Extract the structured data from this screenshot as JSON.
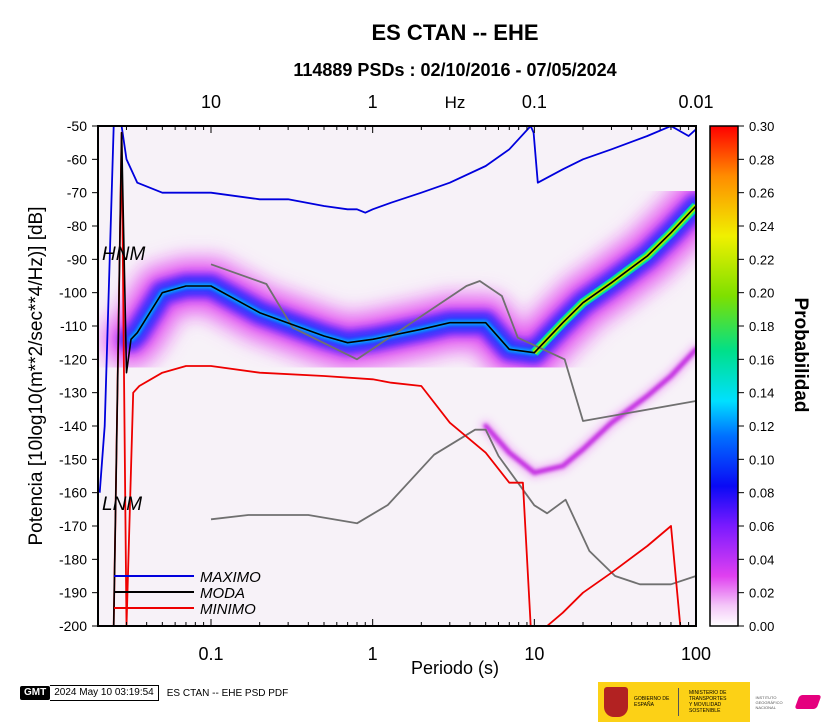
{
  "chart_data": {
    "type": "heatmap",
    "title": "ES CTAN -- EHE",
    "subtitle": "114889 PSDs : 02/10/2016 - 07/05/2024",
    "xlabel": "Periodo (s)",
    "ylabel": "Potencia [10log10(m**2/sec**4/Hz)] [dB]",
    "x_scale": "log",
    "xlim": [
      0.02,
      100
    ],
    "ylim": [
      -200,
      -50
    ],
    "x_ticks": [
      "0.1",
      "1",
      "10",
      "100"
    ],
    "top_axis_label": "Hz",
    "top_ticks": [
      "10",
      "1",
      "0.1",
      "0.01"
    ],
    "y_ticks": [
      "-50",
      "-60",
      "-70",
      "-80",
      "-90",
      "-100",
      "-110",
      "-120",
      "-130",
      "-140",
      "-150",
      "-160",
      "-170",
      "-180",
      "-190",
      "-200"
    ],
    "colorbar": {
      "label": "Probabilidad",
      "range": [
        0,
        0.3
      ],
      "ticks": [
        "0.30",
        "0.28",
        "0.26",
        "0.24",
        "0.22",
        "0.20",
        "0.18",
        "0.16",
        "0.14",
        "0.12",
        "0.10",
        "0.08",
        "0.06",
        "0.04",
        "0.02",
        "0.00"
      ]
    },
    "model_labels": [
      "HNM",
      "LNM"
    ],
    "legend": {
      "placement": "bottom-left",
      "items": [
        {
          "name": "MAXIMO",
          "color": "#0000dd"
        },
        {
          "name": "MODA",
          "color": "#000000"
        },
        {
          "name": "MINIMO",
          "color": "#ee0000"
        }
      ]
    },
    "series": [
      {
        "name": "MAXIMO",
        "color": "#0000dd",
        "x": [
          0.0205,
          0.022,
          0.025,
          0.028,
          0.03,
          0.035,
          0.05,
          0.07,
          0.1,
          0.2,
          0.3,
          0.5,
          0.7,
          0.8,
          0.9,
          1.0,
          1.3,
          2.0,
          3.0,
          5.0,
          7.0,
          9.5,
          9.9,
          10.5,
          15,
          20,
          30,
          50,
          70,
          90,
          100
        ],
        "y": [
          -160,
          -140,
          -50,
          -50,
          -60,
          -67,
          -70,
          -70,
          -70,
          -72,
          -72,
          -74,
          -75,
          -75,
          -76,
          -75,
          -73,
          -70,
          -67,
          -62,
          -57,
          -50,
          -52,
          -67,
          -63,
          -60,
          -57,
          -53,
          -50,
          -53,
          -51
        ]
      },
      {
        "name": "MODA",
        "color": "#000000",
        "x": [
          0.0205,
          0.025,
          0.028,
          0.03,
          0.032,
          0.035,
          0.05,
          0.07,
          0.1,
          0.2,
          0.5,
          0.7,
          1.0,
          2.0,
          3.0,
          5.0,
          7.0,
          10,
          15,
          20,
          30,
          50,
          70,
          100
        ],
        "y": [
          -200,
          -200,
          -52,
          -124,
          -114,
          -112,
          -100,
          -98,
          -98,
          -106,
          -113,
          -115,
          -114,
          -111,
          -109,
          -109,
          -117,
          -118,
          -109,
          -103,
          -97,
          -89,
          -82,
          -74
        ]
      },
      {
        "name": "MINIMO",
        "color": "#ee0000",
        "x": [
          0.0205,
          0.025,
          0.028,
          0.03,
          0.033,
          0.036,
          0.05,
          0.07,
          0.1,
          0.2,
          0.5,
          1.0,
          1.3,
          2.0,
          3.0,
          5.0,
          7.0,
          8.5,
          9.5,
          12,
          15,
          20,
          30,
          50,
          70,
          80,
          100
        ],
        "y": [
          -200,
          -200,
          -52,
          -200,
          -130,
          -128,
          -124,
          -122,
          -122,
          -124,
          -125,
          -126,
          -127,
          -128,
          -139,
          -148,
          -157,
          -157,
          -200,
          -200,
          -196,
          -190,
          -184,
          -176,
          -170,
          -200,
          -200
        ]
      },
      {
        "name": "NHNM",
        "x": [
          0.1,
          0.22,
          0.32,
          0.8,
          3.8,
          4.6,
          6.3,
          7.9,
          15.4,
          20,
          100
        ],
        "y": [
          -91.5,
          -97.4,
          -110.5,
          -120,
          -98,
          -96.5,
          -101,
          -113.5,
          -120,
          -138.5,
          -132.5
        ]
      },
      {
        "name": "NLNM",
        "x": [
          0.1,
          0.17,
          0.4,
          0.8,
          1.24,
          2.4,
          4.3,
          5,
          6,
          10,
          12,
          15.6,
          21.9,
          31.6,
          45,
          70,
          100
        ],
        "y": [
          -168,
          -166.7,
          -166.7,
          -169.2,
          -163.7,
          -148.6,
          -141.1,
          -141.1,
          -149,
          -163.8,
          -166.2,
          -162.1,
          -177.5,
          -185,
          -187.5,
          -187.5,
          -185
        ]
      },
      {
        "name": "secondary-microseism-band",
        "x": [
          5,
          7,
          10,
          15,
          20,
          30,
          50,
          70,
          100
        ],
        "y": [
          -140,
          -148,
          -154,
          -152,
          -147,
          -139,
          -131,
          -125,
          -117
        ]
      }
    ]
  },
  "footer": {
    "logo_text": "GMT",
    "timestamp": "2024 May 10 03:19:54",
    "run_label": "ES CTAN -- EHE PSD PDF"
  },
  "logos": {
    "gobierno": "GOBIERNO DE ESPAÑA",
    "ministerio": "MINISTERIO DE TRANSPORTES Y MOVILIDAD SOSTENIBLE",
    "instituto": "INSTITUTO GEOGRÁFICO NACIONAL"
  }
}
